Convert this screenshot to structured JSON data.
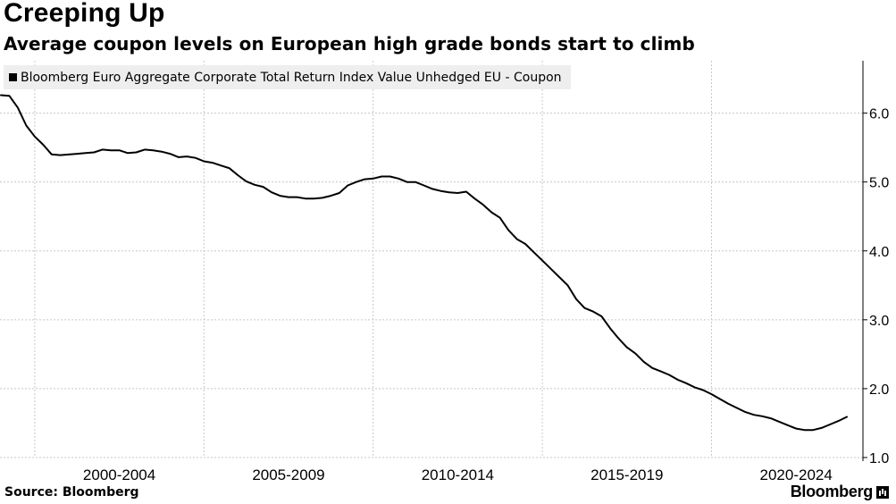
{
  "header": {
    "title": "Creeping Up",
    "subtitle": "Average coupon levels on European high grade bonds start to climb"
  },
  "footer": {
    "source": "Source: Bloomberg",
    "brand": "Bloomberg"
  },
  "icons": {
    "brand_mark": "bloomberg-terminal-icon"
  },
  "colors": {
    "line": "#000000",
    "grid": "#c8c8c8",
    "legend_bg": "#eeeeee"
  },
  "chart_data": {
    "type": "line",
    "title": "Creeping Up",
    "subtitle": "Average coupon levels on European high grade bonds start to climb",
    "xlabel": "",
    "ylabel": "",
    "legend": {
      "placement": "top-left",
      "entries": [
        "Bloomberg Euro Aggregate Corporate Total Return Index Value Unhedged EU - Coupon"
      ]
    },
    "x_tick_labels": [
      "2000-2004",
      "2005-2009",
      "2010-2014",
      "2015-2019",
      "2020-2024"
    ],
    "y_tick_labels": [
      "1.0",
      "2.0",
      "3.0",
      "4.0",
      "5.0",
      "6.0"
    ],
    "y_ticks": [
      1,
      2,
      3,
      4,
      5,
      6
    ],
    "ylim": [
      1.0,
      6.76
    ],
    "xlim": [
      1998.5,
      2023.5
    ],
    "grid": true,
    "y_axis_side": "right",
    "series": [
      {
        "name": "Bloomberg Euro Aggregate Corporate Total Return Index Value Unhedged EU - Coupon",
        "x": [
          1998.5,
          1998.75,
          1999.0,
          1999.25,
          1999.5,
          1999.75,
          2000.0,
          2000.25,
          2000.75,
          2001.0,
          2001.25,
          2001.5,
          2001.75,
          2002.0,
          2002.25,
          2002.5,
          2002.75,
          2003.0,
          2003.25,
          2003.5,
          2003.75,
          2004.0,
          2004.25,
          2004.5,
          2004.75,
          2005.0,
          2005.25,
          2005.5,
          2005.75,
          2006.0,
          2006.25,
          2006.5,
          2006.75,
          2007.0,
          2007.25,
          2007.5,
          2007.75,
          2008.0,
          2008.25,
          2008.5,
          2008.75,
          2009.0,
          2009.25,
          2009.5,
          2009.75,
          2010.0,
          2010.25,
          2010.5,
          2010.75,
          2011.0,
          2011.25,
          2011.5,
          2011.75,
          2012.0,
          2012.25,
          2012.5,
          2012.75,
          2013.0,
          2013.25,
          2013.5,
          2013.75,
          2014.0,
          2014.25,
          2014.5,
          2014.75,
          2015.0,
          2015.25,
          2015.5,
          2015.75,
          2016.0,
          2016.25,
          2016.5,
          2016.75,
          2017.0,
          2017.25,
          2017.5,
          2017.75,
          2018.0,
          2018.25,
          2018.5,
          2018.75,
          2019.0,
          2019.25,
          2019.5,
          2019.75,
          2020.0,
          2020.25,
          2020.5,
          2020.75,
          2021.0,
          2021.25,
          2021.5,
          2021.75,
          2022.0,
          2022.25,
          2022.5,
          2022.75,
          2023.0,
          2023.25,
          2023.5
        ],
        "values": [
          6.26,
          6.25,
          6.08,
          5.82,
          5.66,
          5.54,
          5.4,
          5.39,
          5.41,
          5.42,
          5.43,
          5.47,
          5.46,
          5.46,
          5.42,
          5.43,
          5.47,
          5.46,
          5.44,
          5.41,
          5.36,
          5.37,
          5.35,
          5.3,
          5.28,
          5.24,
          5.2,
          5.1,
          5.01,
          4.96,
          4.93,
          4.85,
          4.8,
          4.78,
          4.78,
          4.76,
          4.76,
          4.77,
          4.8,
          4.84,
          4.95,
          5.0,
          5.04,
          5.05,
          5.08,
          5.08,
          5.05,
          5.0,
          5.0,
          4.95,
          4.9,
          4.87,
          4.85,
          4.84,
          4.86,
          4.76,
          4.67,
          4.56,
          4.48,
          4.3,
          4.17,
          4.1,
          3.98,
          3.86,
          3.74,
          3.62,
          3.5,
          3.3,
          3.17,
          3.12,
          3.05,
          2.88,
          2.73,
          2.6,
          2.51,
          2.39,
          2.3,
          2.25,
          2.2,
          2.13,
          2.08,
          2.02,
          1.98,
          1.92,
          1.85,
          1.78,
          1.72,
          1.66,
          1.62,
          1.6,
          1.57,
          1.52,
          1.47,
          1.42,
          1.4,
          1.4,
          1.43,
          1.48,
          1.53,
          1.59
        ]
      }
    ]
  }
}
